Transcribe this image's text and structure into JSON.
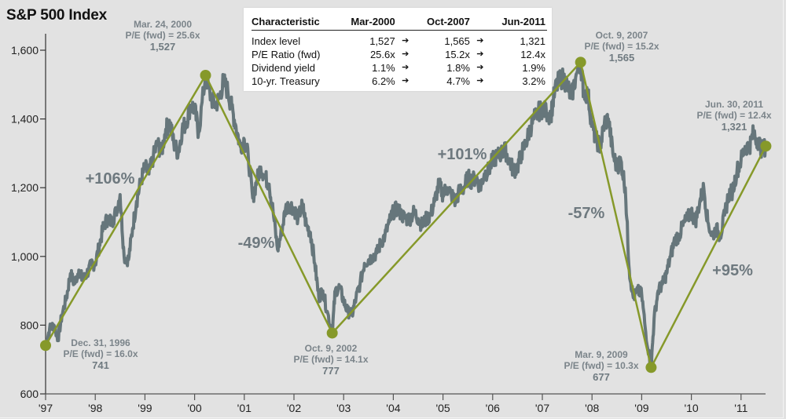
{
  "chart_data": {
    "type": "line",
    "title": "S&P 500 Index",
    "xlabel": "",
    "ylabel": "",
    "ylim": [
      600,
      1600
    ],
    "xlim": [
      1997.0,
      2011.5
    ],
    "grid": false,
    "y_ticks": [
      600,
      800,
      1000,
      1200,
      1400,
      1600
    ],
    "y_tick_labels": [
      "600",
      "800",
      "1,000",
      "1,200",
      "1,400",
      "1,600"
    ],
    "x_ticks": [
      1997,
      1998,
      1999,
      2000,
      2001,
      2002,
      2003,
      2004,
      2005,
      2006,
      2007,
      2008,
      2009,
      2010,
      2011
    ],
    "x_tick_labels": [
      "'97",
      "'98",
      "'99",
      "'00",
      "'01",
      "'02",
      "'03",
      "'04",
      "'05",
      "'06",
      "'07",
      "'08",
      "'09",
      "'10",
      "'11"
    ],
    "series": [
      {
        "name": "S&P 500 Index",
        "color": "#66767b",
        "x": [
          1997.0,
          1997.08,
          1997.17,
          1997.25,
          1997.33,
          1997.42,
          1997.5,
          1997.58,
          1997.67,
          1997.75,
          1997.83,
          1997.92,
          1998.0,
          1998.08,
          1998.17,
          1998.25,
          1998.33,
          1998.42,
          1998.5,
          1998.58,
          1998.67,
          1998.75,
          1998.83,
          1998.92,
          1999.0,
          1999.08,
          1999.17,
          1999.25,
          1999.33,
          1999.42,
          1999.5,
          1999.58,
          1999.67,
          1999.75,
          1999.83,
          1999.92,
          2000.0,
          2000.08,
          2000.22,
          2000.33,
          2000.42,
          2000.5,
          2000.58,
          2000.67,
          2000.75,
          2000.83,
          2000.92,
          2001.0,
          2001.08,
          2001.17,
          2001.25,
          2001.33,
          2001.42,
          2001.5,
          2001.58,
          2001.67,
          2001.75,
          2001.83,
          2001.92,
          2002.0,
          2002.08,
          2002.17,
          2002.25,
          2002.33,
          2002.42,
          2002.5,
          2002.58,
          2002.67,
          2002.77,
          2002.83,
          2002.92,
          2003.0,
          2003.08,
          2003.17,
          2003.25,
          2003.33,
          2003.42,
          2003.5,
          2003.58,
          2003.67,
          2003.75,
          2003.83,
          2003.92,
          2004.0,
          2004.08,
          2004.17,
          2004.25,
          2004.33,
          2004.42,
          2004.5,
          2004.58,
          2004.67,
          2004.75,
          2004.83,
          2004.92,
          2005.0,
          2005.08,
          2005.17,
          2005.25,
          2005.33,
          2005.42,
          2005.5,
          2005.58,
          2005.67,
          2005.75,
          2005.83,
          2005.92,
          2006.0,
          2006.08,
          2006.17,
          2006.25,
          2006.33,
          2006.42,
          2006.5,
          2006.58,
          2006.67,
          2006.75,
          2006.83,
          2006.92,
          2007.0,
          2007.08,
          2007.17,
          2007.25,
          2007.33,
          2007.42,
          2007.5,
          2007.58,
          2007.67,
          2007.77,
          2007.83,
          2007.92,
          2008.0,
          2008.08,
          2008.17,
          2008.25,
          2008.33,
          2008.42,
          2008.5,
          2008.58,
          2008.67,
          2008.75,
          2008.83,
          2008.92,
          2009.0,
          2009.08,
          2009.19,
          2009.25,
          2009.33,
          2009.42,
          2009.5,
          2009.58,
          2009.67,
          2009.75,
          2009.83,
          2009.92,
          2010.0,
          2010.08,
          2010.17,
          2010.25,
          2010.33,
          2010.42,
          2010.5,
          2010.58,
          2010.67,
          2010.75,
          2010.83,
          2010.92,
          2011.0,
          2011.08,
          2011.17,
          2011.25,
          2011.33,
          2011.42,
          2011.5
        ],
        "values": [
          741,
          790,
          800,
          760,
          830,
          880,
          950,
          920,
          960,
          930,
          950,
          975,
          980,
          1030,
          1090,
          1110,
          1100,
          1130,
          1180,
          1000,
          990,
          1080,
          1160,
          1220,
          1260,
          1240,
          1290,
          1330,
          1300,
          1370,
          1390,
          1330,
          1300,
          1370,
          1390,
          1440,
          1430,
          1360,
          1527,
          1460,
          1440,
          1460,
          1510,
          1480,
          1430,
          1380,
          1320,
          1340,
          1290,
          1170,
          1220,
          1260,
          1230,
          1210,
          1130,
          1020,
          1070,
          1140,
          1150,
          1140,
          1110,
          1150,
          1090,
          1070,
          980,
          880,
          900,
          840,
          777,
          900,
          910,
          870,
          840,
          830,
          880,
          920,
          980,
          990,
          1000,
          1010,
          1040,
          1060,
          1100,
          1130,
          1140,
          1120,
          1110,
          1110,
          1130,
          1110,
          1090,
          1110,
          1120,
          1160,
          1210,
          1180,
          1200,
          1180,
          1160,
          1190,
          1200,
          1230,
          1220,
          1230,
          1200,
          1240,
          1250,
          1280,
          1290,
          1300,
          1310,
          1280,
          1250,
          1260,
          1300,
          1330,
          1370,
          1400,
          1420,
          1430,
          1420,
          1410,
          1480,
          1510,
          1520,
          1500,
          1460,
          1520,
          1565,
          1480,
          1470,
          1380,
          1340,
          1320,
          1390,
          1400,
          1300,
          1260,
          1280,
          1200,
          960,
          880,
          900,
          890,
          780,
          677,
          820,
          900,
          920,
          950,
          1000,
          1050,
          1060,
          1090,
          1110,
          1130,
          1100,
          1160,
          1200,
          1100,
          1060,
          1080,
          1060,
          1120,
          1180,
          1190,
          1250,
          1280,
          1320,
          1320,
          1360,
          1340,
          1310,
          1321
        ]
      },
      {
        "name": "Peak-to-trough trend",
        "color": "#86992a",
        "x": [
          1997.0,
          2000.22,
          2002.77,
          2007.77,
          2009.19,
          2011.5
        ],
        "values": [
          741,
          1527,
          777,
          1565,
          677,
          1321
        ]
      }
    ],
    "annotations": [
      {
        "date": "Dec. 31, 1996",
        "pe": "P/E (fwd) = 16.0x",
        "value": "741"
      },
      {
        "date": "Mar. 24, 2000",
        "pe": "P/E (fwd) = 25.6x",
        "value": "1,527"
      },
      {
        "date": "Oct. 9, 2002",
        "pe": "P/E (fwd) = 14.1x",
        "value": "777"
      },
      {
        "date": "Oct. 9, 2007",
        "pe": "P/E (fwd) = 15.2x",
        "value": "1,565"
      },
      {
        "date": "Mar. 9, 2009",
        "pe": "P/E (fwd) = 10.3x",
        "value": "677"
      },
      {
        "date": "Jun. 30, 2011",
        "pe": "P/E (fwd) = 12.4x",
        "value": "1,321"
      }
    ],
    "segment_changes": [
      "+106%",
      "-49%",
      "+101%",
      "-57%",
      "+95%"
    ]
  },
  "colors": {
    "background": "#e2e2e2",
    "index_line": "#66767b",
    "trend_line": "#86992a",
    "annotation_text": "#7b848a"
  },
  "table": {
    "headers": [
      "Characteristic",
      "Mar-2000",
      "Oct-2007",
      "Jun-2011"
    ],
    "arrow_icon": "➔",
    "rows": [
      {
        "label": "Index level",
        "values": [
          "1,527",
          "1,565",
          "1,321"
        ]
      },
      {
        "label": "P/E Ratio (fwd)",
        "values": [
          "25.6x",
          "15.2x",
          "12.4x"
        ]
      },
      {
        "label": "Dividend yield",
        "values": [
          "1.1%",
          "1.8%",
          "1.9%"
        ]
      },
      {
        "label": "10-yr. Treasury",
        "values": [
          "6.2%",
          "4.7%",
          "3.2%"
        ]
      }
    ]
  }
}
